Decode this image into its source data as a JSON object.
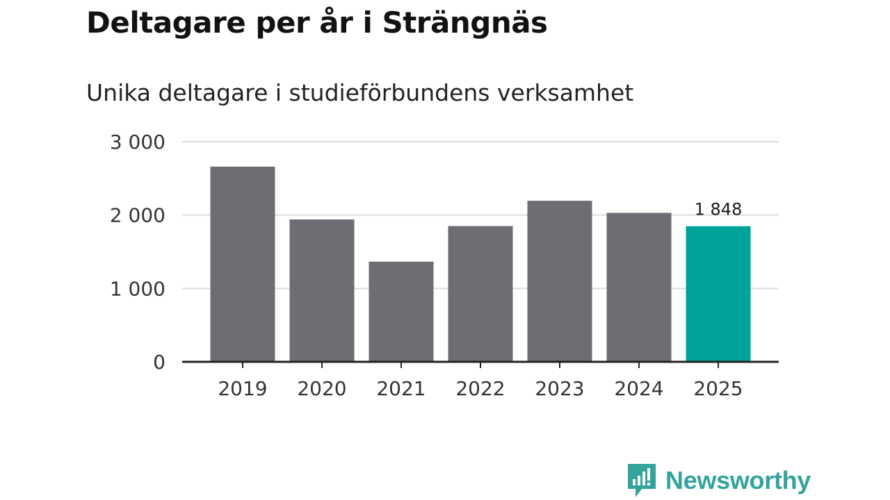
{
  "chart_data": {
    "type": "bar",
    "title": "Deltagare per år i Strängnäs",
    "subtitle": "Unika deltagare i studieförbundens verksamhet",
    "categories": [
      "2019",
      "2020",
      "2021",
      "2022",
      "2023",
      "2024",
      "2025"
    ],
    "values": [
      2660,
      1940,
      1365,
      1850,
      2195,
      2030,
      1848
    ],
    "highlight_index": 6,
    "highlight_label": "1 848",
    "ylim": [
      0,
      3000
    ],
    "yticks": [
      0,
      1000,
      2000,
      3000
    ],
    "ytick_labels": [
      "0",
      "1 000",
      "2 000",
      "3 000"
    ],
    "xlabel": "",
    "ylabel": "",
    "grid": true,
    "bar_color": "#6e6d73",
    "highlight_color": "#00a399"
  },
  "brand": {
    "name": "Newsworthy",
    "color": "#33a39c"
  }
}
